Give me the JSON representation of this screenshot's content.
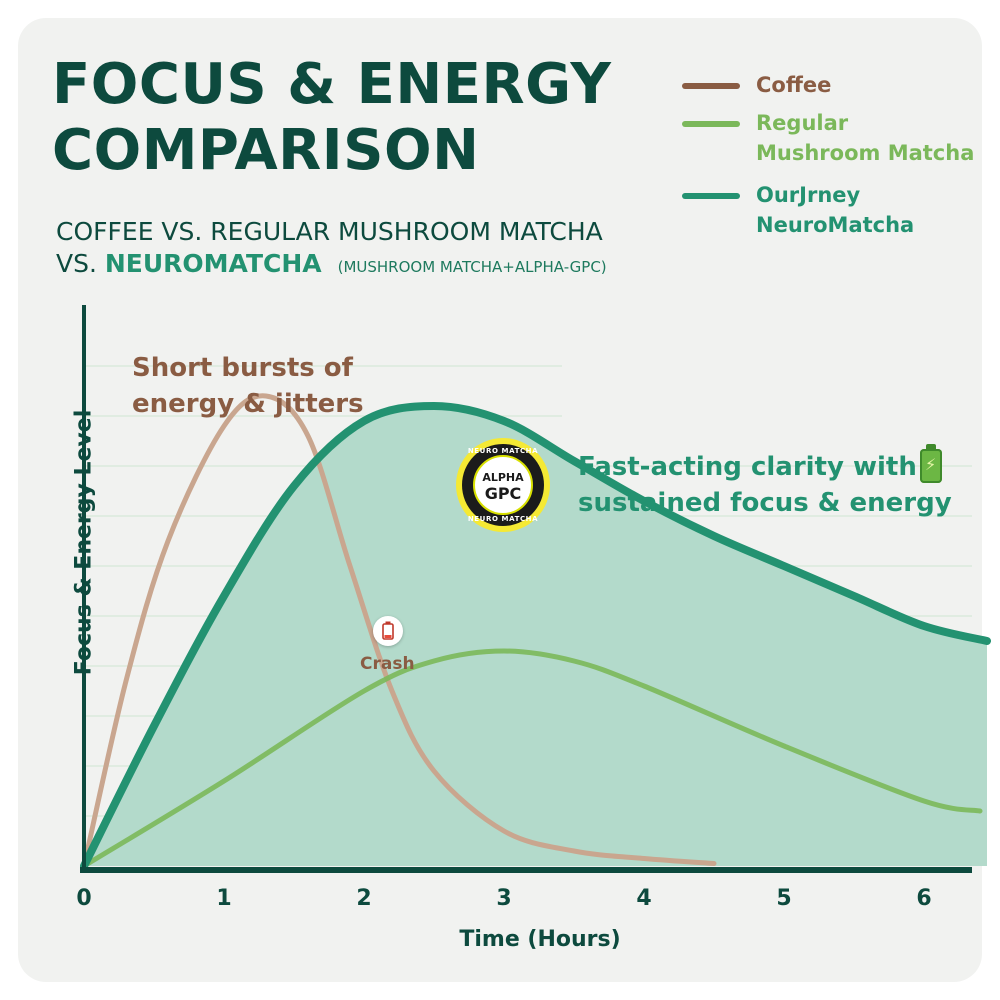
{
  "header": {
    "title_line1": "FOCUS & ENERGY",
    "title_line2": "COMPARISON",
    "subtitle_line1": "COFFEE VS. REGULAR MUSHROOM MATCHA",
    "subtitle_prefix": "VS.",
    "subtitle_strong": "NEUROMATCHA",
    "subtitle_small": "(MUSHROOM MATCHA+ALPHA-GPC)"
  },
  "legend": [
    {
      "label_line1": "Coffee",
      "label_line2": "",
      "color": "#8a5c43"
    },
    {
      "label_line1": "Regular",
      "label_line2": "Mushroom Matcha",
      "color": "#7bb85a"
    },
    {
      "label_line1": "OurJrney",
      "label_line2": "NeuroMatcha",
      "color": "#239271"
    }
  ],
  "annotations": {
    "coffee_line1": "Short bursts of",
    "coffee_line2": "energy & jitters",
    "neuro_line1": "Fast-acting clarity with",
    "neuro_line2": "sustained focus & energy",
    "crash": "Crash",
    "badge_arc_top": "NEURO MATCHA",
    "badge_arc_bottom": "NEURO MATCHA",
    "badge_line1": "ALPHA",
    "badge_line2": "GPC",
    "crash_icon": "empty-battery-icon",
    "neuro_icon": "charging-battery-icon"
  },
  "chart_data": {
    "type": "area",
    "xlabel": "Time (Hours)",
    "ylabel": "Focus & Energy Level",
    "x_ticks": [
      0,
      1,
      2,
      3,
      4,
      5,
      6
    ],
    "xlim": [
      0,
      6.45
    ],
    "ylim": [
      0,
      10
    ],
    "grid": true,
    "legend_position": "top-right",
    "series": [
      {
        "name": "Coffee",
        "color": "#c9a68f",
        "x": [
          0,
          0.3,
          0.6,
          1.0,
          1.3,
          1.6,
          1.9,
          2.2,
          2.5,
          3.0,
          3.5,
          4.0,
          4.5
        ],
        "y": [
          0,
          3.7,
          6.5,
          8.8,
          9.4,
          8.6,
          6.0,
          3.5,
          1.9,
          0.7,
          0.3,
          0.15,
          0.05
        ]
      },
      {
        "name": "Regular Mushroom Matcha",
        "color": "#7bb85a",
        "x": [
          0,
          1.0,
          2.0,
          2.5,
          3.0,
          3.5,
          4.0,
          5.0,
          6.0,
          6.4
        ],
        "y": [
          0,
          1.7,
          3.5,
          4.1,
          4.3,
          4.1,
          3.6,
          2.4,
          1.3,
          1.1
        ]
      },
      {
        "name": "OurJrney NeuroMatcha",
        "color": "#239271",
        "x": [
          0,
          0.5,
          1.0,
          1.5,
          2.0,
          2.5,
          3.0,
          3.5,
          4.0,
          4.5,
          5.0,
          5.5,
          6.0,
          6.45
        ],
        "y": [
          0,
          2.8,
          5.4,
          7.6,
          8.9,
          9.2,
          8.9,
          8.1,
          7.3,
          6.6,
          6.0,
          5.4,
          4.8,
          4.5
        ]
      }
    ]
  }
}
